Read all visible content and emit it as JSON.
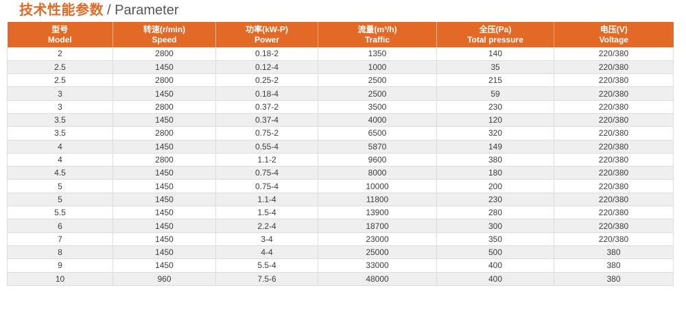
{
  "title": {
    "zh": "技术性能参数",
    "en": "/ Parameter"
  },
  "colors": {
    "accent_orange": "#E26A26",
    "title_text_gray": "#55565A",
    "header_text": "#FFFFFF",
    "row_alt_bg": "#EFEFEF",
    "border": "#DDDDDD",
    "cell_text": "#3B3B3B"
  },
  "table": {
    "columns": [
      {
        "zh": "型号",
        "en": "Model"
      },
      {
        "zh": "转速(r/min)",
        "en": "Speed"
      },
      {
        "zh": "功率(kW-P)",
        "en": "Power"
      },
      {
        "zh": "流量(m³/h)",
        "en": "Traffic"
      },
      {
        "zh": "全压(Pa)",
        "en": "Total pressure"
      },
      {
        "zh": "电压(V)",
        "en": "Voltage"
      }
    ],
    "rows": [
      [
        "2",
        "2800",
        "0.18-2",
        "1350",
        "140",
        "220/380"
      ],
      [
        "2.5",
        "1450",
        "0.12-4",
        "1000",
        "35",
        "220/380"
      ],
      [
        "2.5",
        "2800",
        "0.25-2",
        "2500",
        "215",
        "220/380"
      ],
      [
        "3",
        "1450",
        "0.18-4",
        "2500",
        "59",
        "220/380"
      ],
      [
        "3",
        "2800",
        "0.37-2",
        "3500",
        "230",
        "220/380"
      ],
      [
        "3.5",
        "1450",
        "0.37-4",
        "4000",
        "120",
        "220/380"
      ],
      [
        "3.5",
        "2800",
        "0.75-2",
        "6500",
        "320",
        "220/380"
      ],
      [
        "4",
        "1450",
        "0.55-4",
        "5870",
        "149",
        "220/380"
      ],
      [
        "4",
        "2800",
        "1.1-2",
        "9600",
        "380",
        "220/380"
      ],
      [
        "4.5",
        "1450",
        "0.75-4",
        "8000",
        "180",
        "220/380"
      ],
      [
        "5",
        "1450",
        "0.75-4",
        "10000",
        "200",
        "220/380"
      ],
      [
        "5",
        "1450",
        "1.1-4",
        "11800",
        "230",
        "220/380"
      ],
      [
        "5.5",
        "1450",
        "1.5-4",
        "13900",
        "280",
        "220/380"
      ],
      [
        "6",
        "1450",
        "2.2-4",
        "18700",
        "300",
        "220/380"
      ],
      [
        "7",
        "1450",
        "3-4",
        "23000",
        "350",
        "220/380"
      ],
      [
        "8",
        "1450",
        "4-4",
        "25000",
        "500",
        "380"
      ],
      [
        "9",
        "1450",
        "5.5-4",
        "33000",
        "400",
        "380"
      ],
      [
        "10",
        "960",
        "7.5-6",
        "48000",
        "400",
        "380"
      ]
    ]
  }
}
